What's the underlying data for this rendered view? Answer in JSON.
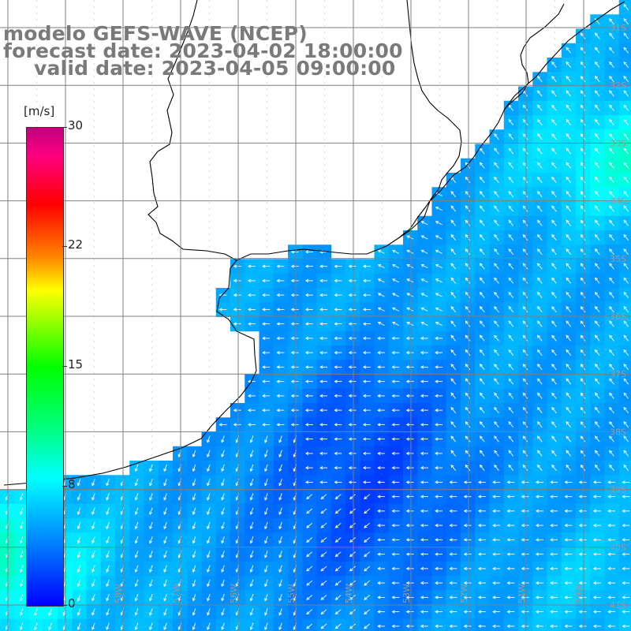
{
  "title": {
    "line1": "modelo GEFS-WAVE (NCEP)",
    "line2": "forecast date: 2023-04-02 18:00:00",
    "line3": "valid date: 2023-04-05 09:00:00"
  },
  "colorbar": {
    "unit": "[m/s]",
    "min": 0,
    "max": 30,
    "ticks": [
      {
        "label": "30",
        "value": 30
      },
      {
        "label": "22",
        "value": 22
      },
      {
        "label": "15",
        "value": 15
      },
      {
        "label": "8",
        "value": 8
      },
      {
        "label": "0",
        "value": 0
      }
    ],
    "colors": [
      "#0000ff",
      "#00ffff",
      "#00ff00",
      "#ffff00",
      "#ff0000",
      "#c0007f"
    ]
  },
  "map": {
    "lon_range": [
      -60,
      -48.5
    ],
    "lat_range": [
      -41.5,
      -30.5
    ],
    "grid_step_deg": 1,
    "land_color": "#ffffff",
    "coast_color": "#000000",
    "grid_color": "#7f7f7f",
    "vector_color": "#ffffff"
  },
  "lat_labels": [
    "31S",
    "32S",
    "33S",
    "34S",
    "35S",
    "36S",
    "37S",
    "38S",
    "39S",
    "40S",
    "41S"
  ],
  "lon_labels": [
    "59W",
    "58W",
    "57W",
    "56W",
    "55W",
    "54W",
    "53W",
    "52W",
    "51W",
    "50W",
    "49W"
  ]
}
